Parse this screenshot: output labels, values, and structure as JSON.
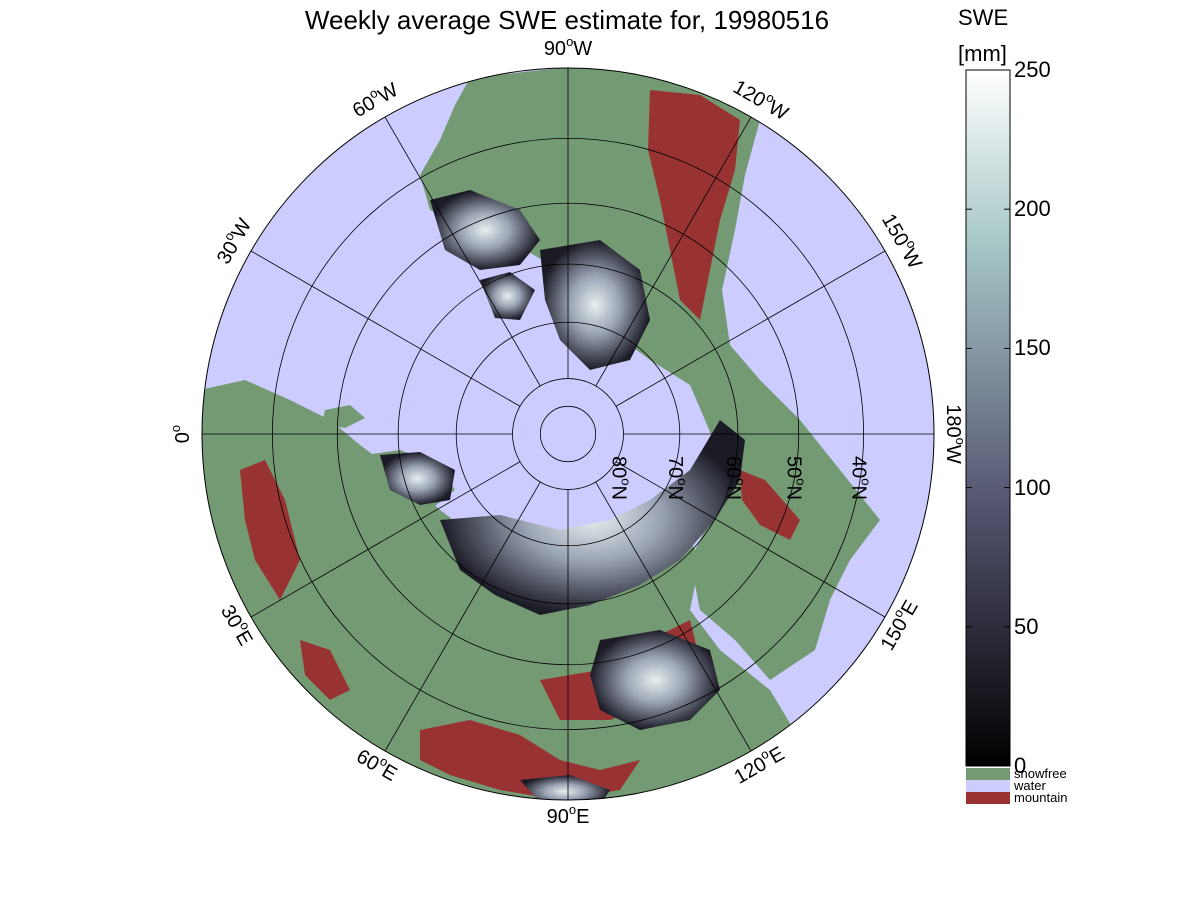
{
  "title": "Weekly average SWE estimate for, 19980516",
  "map": {
    "projection": "north polar stereographic",
    "longitude_labels": [
      {
        "lon": 90,
        "text": "90",
        "hemi": "W"
      },
      {
        "lon": 120,
        "text": "120",
        "hemi": "W"
      },
      {
        "lon": 150,
        "text": "150",
        "hemi": "W"
      },
      {
        "lon": 180,
        "text": "180",
        "hemi": "W"
      },
      {
        "lon": 60,
        "text": "60",
        "hemi": "W"
      },
      {
        "lon": 30,
        "text": "30",
        "hemi": "W"
      },
      {
        "lon": 0,
        "text": "0",
        "hemi": ""
      },
      {
        "lon": -30,
        "text": "30",
        "hemi": "E"
      },
      {
        "lon": -60,
        "text": "60",
        "hemi": "E"
      },
      {
        "lon": -90,
        "text": "90",
        "hemi": "E"
      },
      {
        "lon": -120,
        "text": "120",
        "hemi": "E"
      },
      {
        "lon": -150,
        "text": "150",
        "hemi": "E"
      }
    ],
    "latitude_labels": [
      {
        "lat": 80,
        "text": "80",
        "hemi": "N"
      },
      {
        "lat": 70,
        "text": "70",
        "hemi": "N"
      },
      {
        "lat": 60,
        "text": "60",
        "hemi": "N"
      },
      {
        "lat": 50,
        "text": "50",
        "hemi": "N"
      },
      {
        "lat": 40,
        "text": "40",
        "hemi": "N"
      }
    ],
    "colors": {
      "water": "#ccccff",
      "snowfree": "#739a73",
      "mountain": "#993333"
    }
  },
  "colorbar": {
    "label_line1": "SWE",
    "label_line2": "[mm]",
    "ticks": [
      0,
      50,
      100,
      150,
      200,
      250
    ],
    "range": [
      0,
      250
    ],
    "colormap": "bone (black to white)"
  },
  "legend": [
    {
      "label": "snowfree",
      "color": "#739a73"
    },
    {
      "label": "water",
      "color": "#ccccff"
    },
    {
      "label": "mountain",
      "color": "#993333"
    }
  ]
}
